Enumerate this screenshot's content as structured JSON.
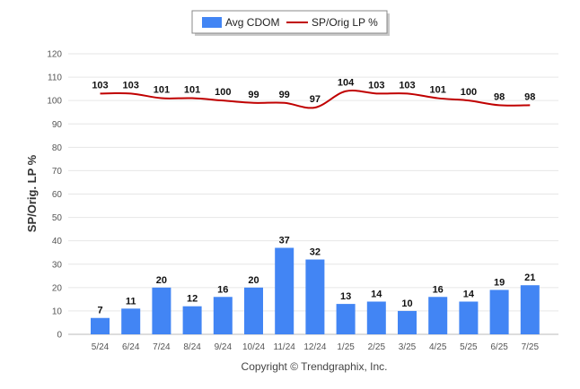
{
  "chart_data": {
    "type": "bar",
    "categories": [
      "5/24",
      "6/24",
      "7/24",
      "8/24",
      "9/24",
      "10/24",
      "11/24",
      "12/24",
      "1/25",
      "2/25",
      "3/25",
      "4/25",
      "5/25",
      "6/25",
      "7/25"
    ],
    "series": [
      {
        "name": "Avg CDOM",
        "type": "bar",
        "color": "#4285f4",
        "values": [
          7,
          11,
          20,
          12,
          16,
          20,
          37,
          32,
          13,
          14,
          10,
          16,
          14,
          19,
          21
        ]
      },
      {
        "name": "SP/Orig LP %",
        "type": "line",
        "color": "#c00000",
        "values": [
          103,
          103,
          101,
          101,
          100,
          99,
          99,
          97,
          104,
          103,
          103,
          101,
          100,
          98,
          98
        ]
      }
    ],
    "ylabel": "SP/Orig. LP %",
    "ylim": [
      0,
      120
    ],
    "yticks": [
      0,
      10,
      20,
      30,
      40,
      50,
      60,
      70,
      80,
      90,
      100,
      110,
      120
    ],
    "grid": true,
    "legend_position": "top-center"
  },
  "legend": {
    "bar_label": "Avg CDOM",
    "line_label": "SP/Orig LP %"
  },
  "footer": {
    "copyright": "Copyright © Trendgraphix, Inc."
  }
}
